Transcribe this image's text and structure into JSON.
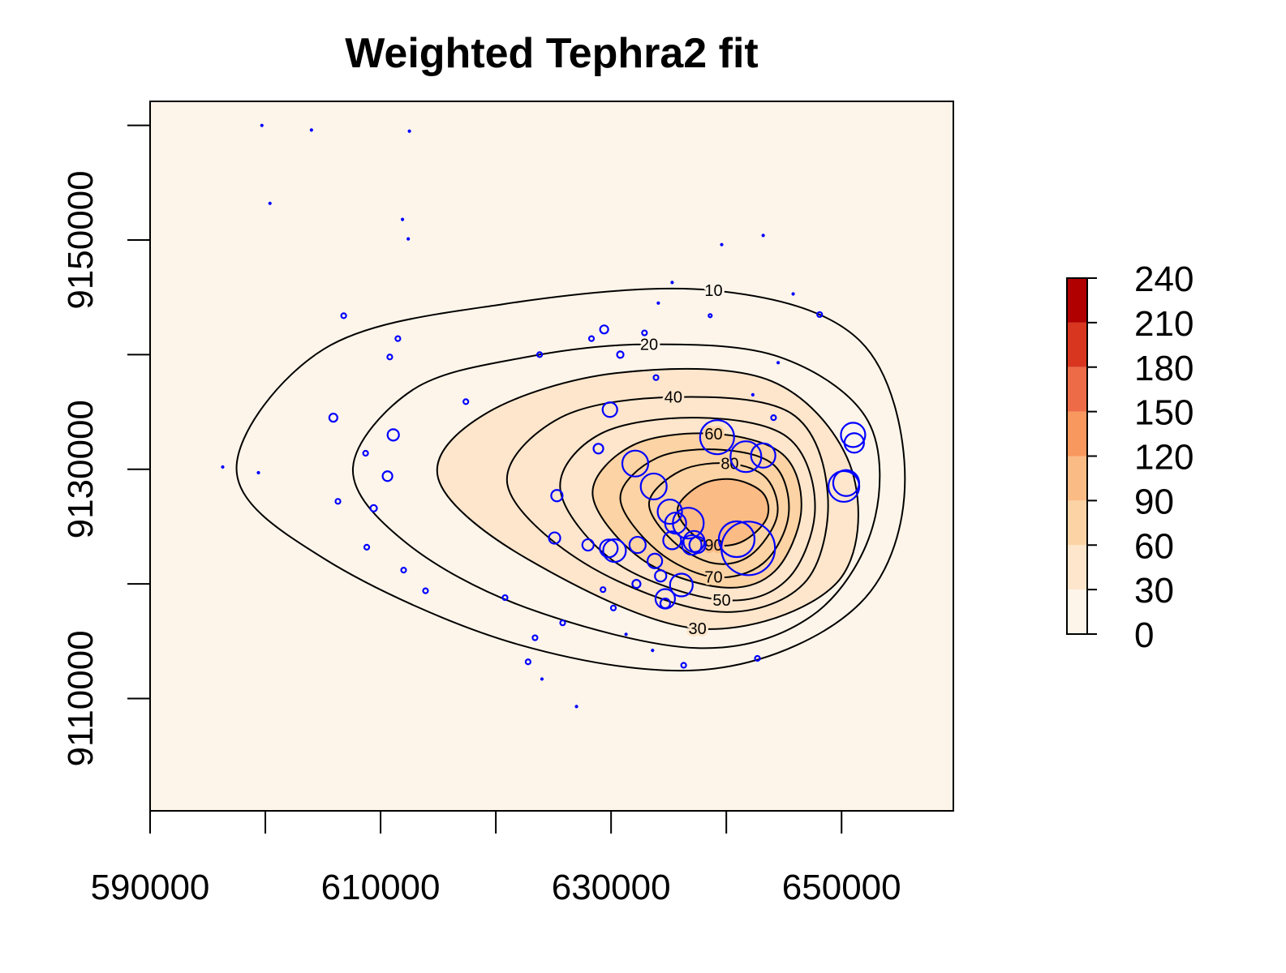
{
  "chart_data": {
    "type": "contour",
    "title": "Weighted Tephra2 fit",
    "xlim": [
      590000,
      659700
    ],
    "ylim": [
      9100200,
      9162100
    ],
    "xticks": [
      590000,
      610000,
      630000,
      650000
    ],
    "xminor_ticks": [
      600000,
      620000,
      640000
    ],
    "yticks": [
      9110000,
      9130000,
      9150000
    ],
    "yminor_ticks": [
      9120000,
      9140000,
      9160000
    ],
    "levels": [
      0,
      30,
      60,
      90,
      120,
      150,
      180,
      210,
      240
    ],
    "colors": [
      "#FEF5EA",
      "#FDE6CC",
      "#FCD3A4",
      "#FBBB85",
      "#F8985E",
      "#EE6B48",
      "#D9361F",
      "#B00000"
    ],
    "contours": [
      {
        "level": 10,
        "x": [
          597500,
          605100,
          620600,
          638900,
          651600,
          655500,
          651600,
          638900,
          622000,
          605100
        ],
        "y": [
          9130100,
          9140500,
          9144400,
          9145600,
          9141200,
          9129200,
          9118300,
          9112600,
          9114700,
          9122200
        ]
      },
      {
        "level": 20,
        "x": [
          607600,
          612900,
          622700,
          633300,
          644600,
          652300,
          652700,
          647400,
          637500,
          622700,
          612200
        ],
        "y": [
          9130100,
          9137000,
          9139800,
          9140900,
          9139800,
          9134200,
          9125000,
          9117200,
          9114400,
          9117900,
          9123600
        ]
      },
      {
        "level": 30,
        "x": [
          615000,
          619200,
          630500,
          643900,
          650900,
          649500,
          637500,
          622700
        ],
        "y": [
          9129200,
          9134900,
          9138400,
          9137700,
          9129900,
          9120000,
          9116100,
          9122200
        ]
      },
      {
        "level": 40,
        "x": [
          621000,
          625600,
          635400,
          645600,
          648800,
          646700,
          638900,
          627700
        ],
        "y": [
          9128700,
          9134500,
          9136300,
          9134900,
          9127800,
          9120000,
          9117600,
          9121800
        ]
      },
      {
        "level": 50,
        "x": [
          625600,
          629100,
          637500,
          645300,
          647700,
          645300,
          639600,
          630500
        ],
        "y": [
          9128200,
          9133100,
          9134500,
          9132800,
          9126700,
          9120400,
          9118600,
          9121800
        ]
      },
      {
        "level": 60,
        "x": [
          628400,
          631900,
          638900,
          644900,
          646500,
          644200,
          639600,
          632600
        ],
        "y": [
          9127800,
          9132100,
          9133100,
          9131300,
          9126400,
          9121100,
          9119700,
          9122200
        ]
      },
      {
        "level": 70,
        "x": [
          630800,
          634000,
          639600,
          644200,
          645400,
          643200,
          638900,
          634000
        ],
        "y": [
          9127500,
          9131000,
          9131700,
          9130300,
          9126000,
          9121800,
          9120600,
          9122900
        ]
      },
      {
        "level": 80,
        "x": [
          633300,
          636100,
          640300,
          643500,
          644400,
          642100,
          638900,
          635400
        ],
        "y": [
          9127100,
          9129900,
          9130500,
          9129200,
          9125900,
          9122500,
          9121800,
          9123700
        ]
      },
      {
        "level": 90,
        "x": [
          635800,
          637900,
          640700,
          643200,
          643500,
          641400,
          638900,
          636800
        ],
        "y": [
          9126700,
          9128700,
          9129100,
          9127900,
          9125700,
          9123700,
          9123400,
          9124600
        ]
      }
    ],
    "point_color": "#0000FF",
    "points": {
      "x": [
        599700,
        604000,
        612500,
        600400,
        611900,
        612400,
        639600,
        643200,
        635300,
        645800,
        634100,
        596300,
        599400,
        644500,
        642300,
        627000,
        624000,
        633600,
        631300,
        606800,
        611500,
        610800,
        623800,
        628300,
        632900,
        633900,
        648100,
        638600,
        617400,
        608700,
        606300,
        608800,
        612000,
        613900,
        620800,
        625800,
        623400,
        622800,
        636300,
        642700,
        630200,
        629300,
        644100,
        609400,
        629400,
        630800,
        605900,
        611100,
        610600,
        628900,
        625300,
        625100,
        628000,
        629900,
        633800,
        634300,
        632200,
        634700,
        634700,
        636100,
        632300,
        630300,
        629800,
        639200,
        641700,
        643200,
        651000,
        651100,
        650200,
        650400,
        632100,
        633700,
        635100,
        635600,
        636700,
        637200,
        637000,
        635300,
        641900,
        640900,
        637500
      ],
      "y": [
        9160000,
        9159600,
        9159500,
        9153200,
        9151800,
        9150100,
        9149600,
        9150400,
        9146300,
        9145300,
        9144500,
        9130200,
        9129700,
        9139300,
        9136500,
        9109300,
        9111700,
        9114200,
        9115600,
        9143400,
        9141400,
        9139800,
        9140000,
        9141400,
        9141900,
        9138000,
        9143500,
        9143400,
        9135900,
        9131400,
        9127200,
        9123200,
        9121200,
        9119400,
        9118800,
        9116600,
        9115300,
        9113200,
        9112900,
        9113500,
        9117900,
        9119500,
        9134500,
        9126600,
        9142200,
        9140000,
        9134500,
        9133000,
        9129400,
        9131800,
        9127700,
        9124000,
        9123400,
        9135200,
        9122000,
        9120700,
        9120000,
        9118300,
        9118700,
        9119900,
        9123400,
        9122900,
        9123100,
        9132800,
        9131100,
        9131200,
        9133000,
        9132300,
        9128500,
        9128800,
        9130500,
        9128500,
        9126300,
        9125300,
        9125300,
        9123700,
        9123400,
        9123800,
        9123100,
        9123900,
        9123400
      ],
      "sizes": [
        1,
        1,
        1,
        1,
        1,
        1,
        1,
        1,
        1,
        1,
        1,
        1,
        1,
        1,
        1,
        1,
        1,
        1,
        1,
        3,
        3,
        3,
        3,
        3,
        3,
        3,
        3,
        2,
        3,
        3,
        3,
        3,
        3,
        3,
        3,
        3,
        3,
        3,
        3,
        3,
        3,
        3,
        3,
        4,
        5,
        4,
        5,
        7,
        6,
        6,
        7,
        7,
        7,
        9,
        9,
        7,
        5,
        6,
        12,
        14,
        10,
        14,
        11,
        21,
        19,
        15,
        15,
        12,
        19,
        16,
        16,
        16,
        15,
        13,
        19,
        13,
        12,
        11,
        33,
        22,
        10
      ]
    }
  }
}
